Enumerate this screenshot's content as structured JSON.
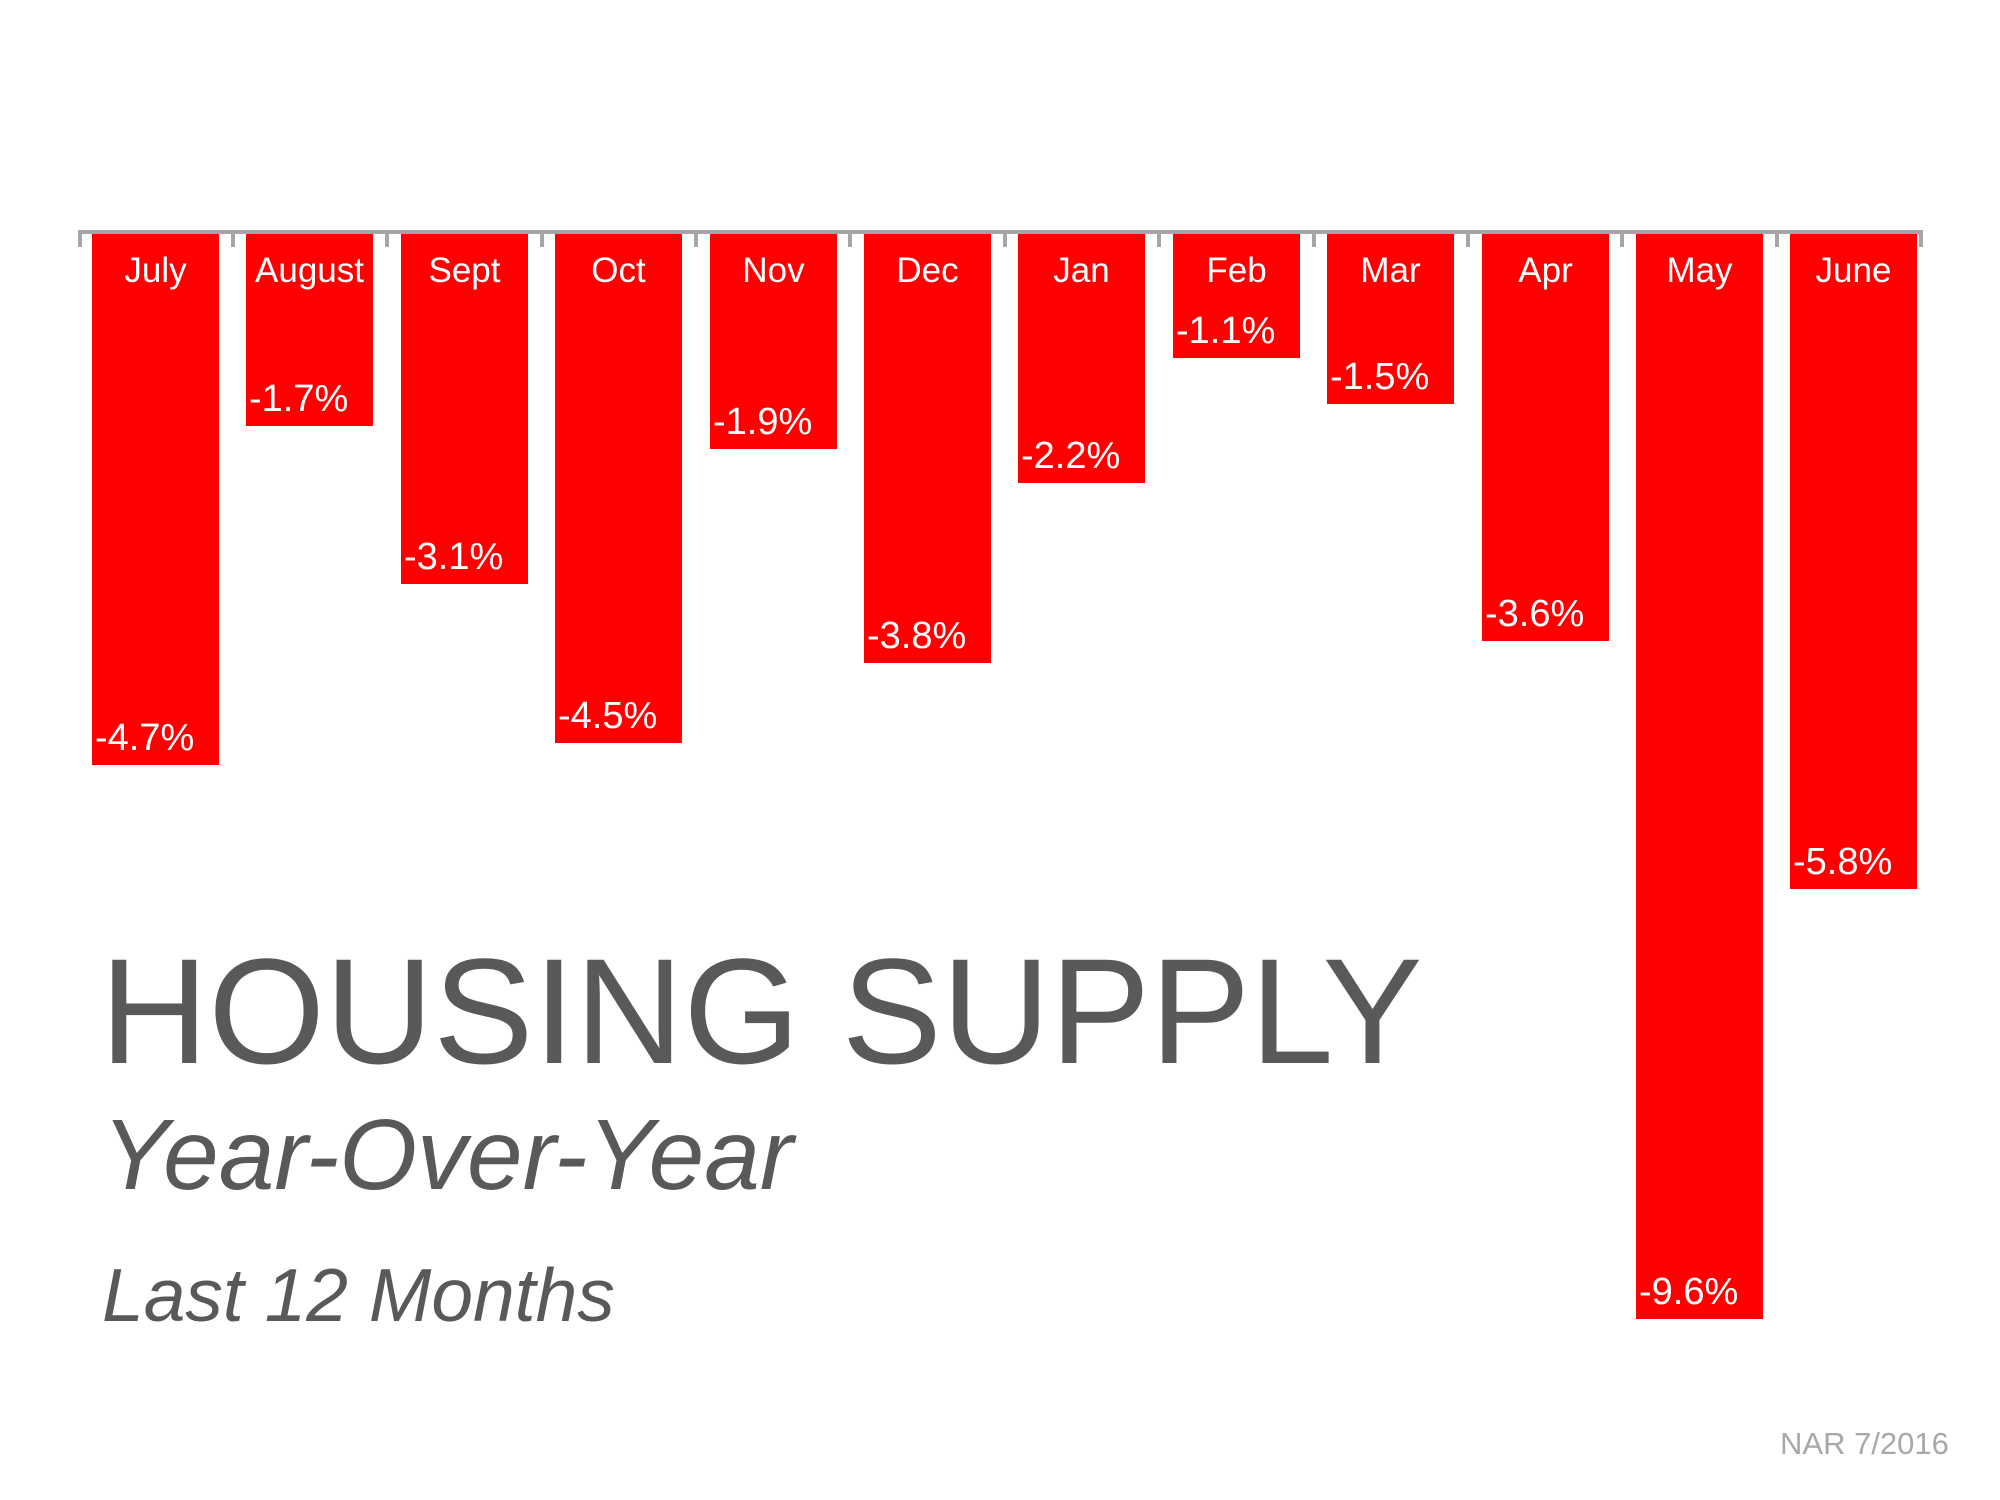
{
  "chart_data": {
    "type": "bar",
    "orientation": "columns-hanging-below-zero-axis",
    "title": "HOUSING SUPPLY",
    "subtitle": "Year-Over-Year",
    "period": "Last 12 Months",
    "source": "NAR 7/2016",
    "categories": [
      "July",
      "August",
      "Sept",
      "Oct",
      "Nov",
      "Dec",
      "Jan",
      "Feb",
      "Mar",
      "Apr",
      "May",
      "June"
    ],
    "values": [
      -4.7,
      -1.7,
      -3.1,
      -4.5,
      -1.9,
      -3.8,
      -2.2,
      -1.1,
      -1.5,
      -3.6,
      -9.6,
      -5.8
    ],
    "labels": [
      "-4.7%",
      "-1.7%",
      "-3.1%",
      "-4.5%",
      "-1.9%",
      "-3.8%",
      "-2.2%",
      "-1.1%",
      "-1.5%",
      "-3.6%",
      "-9.6%",
      "-5.8%"
    ],
    "ylim": [
      -10,
      0
    ],
    "grid": false,
    "legend": "none",
    "bar_color": "#FF0000",
    "axis_color": "#A6A6A6",
    "title_color": "#595959",
    "subtitle_color": "#595959",
    "source_color": "#A8A8A8",
    "label_color": "#FFFFFF"
  }
}
